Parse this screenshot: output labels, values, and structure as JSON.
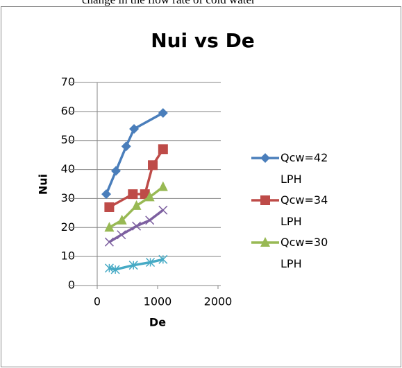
{
  "caption": "change in the flow rate of cold water",
  "chart_data": {
    "type": "scatter-line",
    "title": "Nui vs De",
    "x_label": "De",
    "y_label": "Nui",
    "xlim": [
      0,
      2000
    ],
    "xticks": [
      0,
      1000,
      2000
    ],
    "ylim": [
      0,
      70
    ],
    "yticks": [
      0,
      10,
      20,
      30,
      40,
      50,
      60,
      70
    ],
    "grid": true,
    "legend": "right",
    "series": [
      {
        "name": "Qcw=42LPH",
        "color": "#4a7ebb",
        "marker": "diamond",
        "x": [
          150,
          310,
          480,
          610,
          1090
        ],
        "values": [
          31.5,
          39.5,
          48,
          54,
          59.5
        ]
      },
      {
        "name": "Qcw=34LPH",
        "color": "#be4b48",
        "marker": "square",
        "x": [
          200,
          590,
          790,
          920,
          1090
        ],
        "values": [
          27,
          31.5,
          31.5,
          41.5,
          47
        ]
      },
      {
        "name": "Qcw=30LPH",
        "color": "#98b954",
        "marker": "triangle",
        "x": [
          200,
          410,
          650,
          870,
          1090
        ],
        "values": [
          20,
          22.5,
          27.5,
          30.5,
          34
        ]
      },
      {
        "color": "#7d60a0",
        "marker": "x",
        "x": [
          200,
          400,
          650,
          870,
          1090
        ],
        "values": [
          15,
          17.5,
          20.5,
          22.5,
          26
        ]
      },
      {
        "color": "#46aac5",
        "marker": "star",
        "x": [
          200,
          300,
          600,
          880,
          1090
        ],
        "values": [
          6,
          5.5,
          7,
          8,
          9
        ]
      }
    ]
  }
}
